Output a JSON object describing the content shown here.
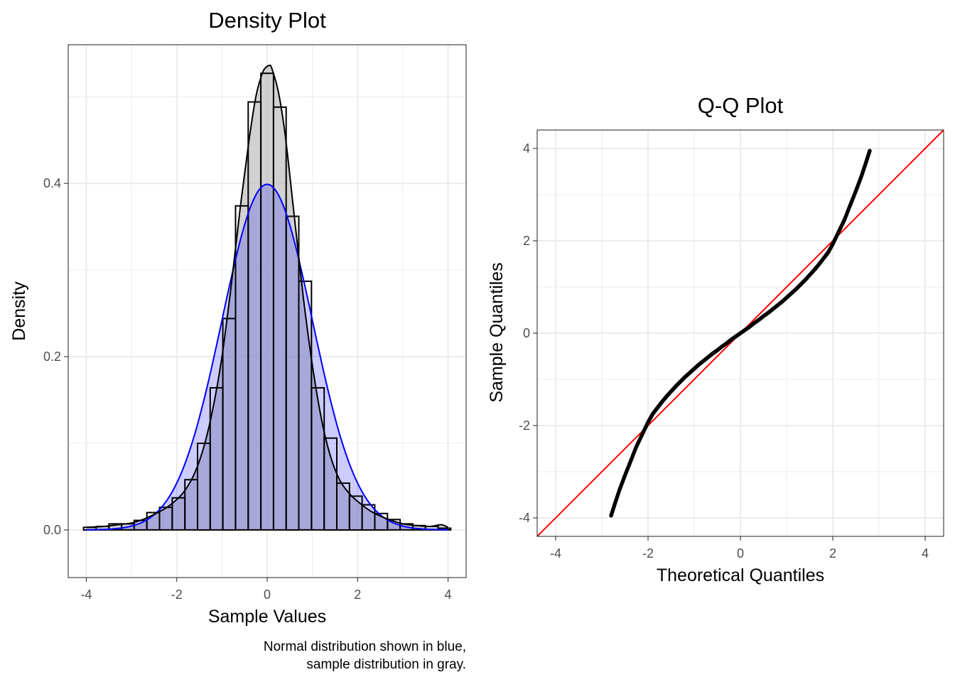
{
  "colors": {
    "normal_line": "#0000ff",
    "normal_fill": "#0000ff",
    "sample_fill": "#bebebe",
    "reference_line": "#ff0000",
    "points": "#000000"
  },
  "chart_data": [
    {
      "type": "histogram",
      "title": "Density Plot",
      "xlabel": "Sample Values",
      "ylabel": "Density",
      "caption": [
        "Normal distribution shown in blue,",
        "sample distribution in gray."
      ],
      "xlim": [
        -4.4,
        4.4
      ],
      "ylim": [
        -0.055,
        0.56
      ],
      "xticks": [
        -4,
        -2,
        0,
        2,
        4
      ],
      "xtick_labels": [
        "-4",
        "-2",
        "0",
        "2",
        "4"
      ],
      "yticks": [
        0,
        0.2,
        0.4
      ],
      "ytick_labels": [
        "0.0",
        "0.2",
        "0.4"
      ],
      "grid": true,
      "bin_width": 0.28,
      "bins": [
        {
          "x0": -4.06,
          "x1": -3.78,
          "density": 0.003
        },
        {
          "x0": -3.78,
          "x1": -3.5,
          "density": 0.004
        },
        {
          "x0": -3.5,
          "x1": -3.22,
          "density": 0.007
        },
        {
          "x0": -3.22,
          "x1": -2.94,
          "density": 0.007
        },
        {
          "x0": -2.94,
          "x1": -2.66,
          "density": 0.011
        },
        {
          "x0": -2.66,
          "x1": -2.38,
          "density": 0.02
        },
        {
          "x0": -2.38,
          "x1": -2.1,
          "density": 0.026
        },
        {
          "x0": -2.1,
          "x1": -1.82,
          "density": 0.037
        },
        {
          "x0": -1.82,
          "x1": -1.54,
          "density": 0.058
        },
        {
          "x0": -1.54,
          "x1": -1.26,
          "density": 0.1
        },
        {
          "x0": -1.26,
          "x1": -0.98,
          "density": 0.164
        },
        {
          "x0": -0.98,
          "x1": -0.7,
          "density": 0.244
        },
        {
          "x0": -0.7,
          "x1": -0.42,
          "density": 0.374
        },
        {
          "x0": -0.42,
          "x1": -0.14,
          "density": 0.494
        },
        {
          "x0": -0.14,
          "x1": 0.14,
          "density": 0.527
        },
        {
          "x0": 0.14,
          "x1": 0.42,
          "density": 0.488
        },
        {
          "x0": 0.42,
          "x1": 0.7,
          "density": 0.362
        },
        {
          "x0": 0.7,
          "x1": 0.98,
          "density": 0.287
        },
        {
          "x0": 0.98,
          "x1": 1.26,
          "density": 0.164
        },
        {
          "x0": 1.26,
          "x1": 1.54,
          "density": 0.106
        },
        {
          "x0": 1.54,
          "x1": 1.82,
          "density": 0.054
        },
        {
          "x0": 1.82,
          "x1": 2.1,
          "density": 0.039
        },
        {
          "x0": 2.1,
          "x1": 2.38,
          "density": 0.029
        },
        {
          "x0": 2.38,
          "x1": 2.66,
          "density": 0.019
        },
        {
          "x0": 2.66,
          "x1": 2.94,
          "density": 0.012
        },
        {
          "x0": 2.94,
          "x1": 3.22,
          "density": 0.007
        },
        {
          "x0": 3.22,
          "x1": 3.5,
          "density": 0.005
        },
        {
          "x0": 3.5,
          "x1": 3.78,
          "density": 0.004
        },
        {
          "x0": 3.78,
          "x1": 4.06,
          "density": 0.002
        }
      ],
      "series": [
        {
          "kind": "normal-density",
          "mean": 0,
          "sd": 1,
          "color": "blue"
        },
        {
          "kind": "sample-density",
          "color": "gray",
          "x": [
            -4.0,
            -3.6,
            -3.3,
            -3.0,
            -2.75,
            -2.5,
            -2.25,
            -2.0,
            -1.8,
            -1.6,
            -1.4,
            -1.2,
            -1.0,
            -0.8,
            -0.6,
            -0.4,
            -0.25,
            -0.1,
            0.0,
            0.05,
            0.1,
            0.25,
            0.4,
            0.6,
            0.8,
            1.0,
            1.2,
            1.4,
            1.6,
            1.8,
            2.0,
            2.25,
            2.5,
            2.75,
            3.0,
            3.3,
            3.6,
            3.85,
            4.0
          ],
          "y": [
            0.003,
            0.004,
            0.006,
            0.008,
            0.012,
            0.018,
            0.025,
            0.035,
            0.047,
            0.066,
            0.096,
            0.14,
            0.2,
            0.28,
            0.37,
            0.45,
            0.5,
            0.528,
            0.535,
            0.536,
            0.533,
            0.505,
            0.455,
            0.362,
            0.268,
            0.19,
            0.128,
            0.085,
            0.058,
            0.043,
            0.033,
            0.023,
            0.016,
            0.011,
            0.007,
            0.005,
            0.004,
            0.006,
            0.003
          ]
        }
      ]
    },
    {
      "type": "scatter",
      "title": "Q-Q Plot",
      "xlabel": "Theoretical Quantiles",
      "ylabel": "Sample Quantiles",
      "xlim": [
        -4.4,
        4.4
      ],
      "ylim": [
        -4.4,
        4.4
      ],
      "xticks": [
        -4,
        -2,
        0,
        2,
        4
      ],
      "xtick_labels": [
        "-4",
        "-2",
        "0",
        "2",
        "4"
      ],
      "yticks": [
        -4,
        -2,
        0,
        2,
        4
      ],
      "ytick_labels": [
        "-4",
        "-2",
        "0",
        "2",
        "4"
      ],
      "grid": true,
      "reference_line": {
        "slope": 1,
        "intercept": 0,
        "color": "red"
      },
      "points": {
        "x": [
          -2.8,
          -2.72,
          -2.62,
          -2.5,
          -2.38,
          -2.25,
          -2.12,
          -2.0,
          -1.9,
          -1.8,
          -1.7,
          -1.6,
          -1.5,
          -1.4,
          -1.3,
          -1.2,
          -1.1,
          -1.0,
          -0.9,
          -0.8,
          -0.7,
          -0.6,
          -0.5,
          -0.4,
          -0.3,
          -0.2,
          -0.1,
          0.0,
          0.1,
          0.2,
          0.3,
          0.4,
          0.5,
          0.6,
          0.7,
          0.8,
          0.9,
          1.0,
          1.1,
          1.2,
          1.3,
          1.4,
          1.5,
          1.6,
          1.7,
          1.8,
          1.9,
          2.0,
          2.12,
          2.25,
          2.38,
          2.5,
          2.62,
          2.72,
          2.8
        ],
        "y": [
          -3.95,
          -3.7,
          -3.4,
          -3.08,
          -2.78,
          -2.45,
          -2.18,
          -1.93,
          -1.75,
          -1.62,
          -1.49,
          -1.37,
          -1.26,
          -1.15,
          -1.05,
          -0.95,
          -0.86,
          -0.77,
          -0.68,
          -0.6,
          -0.52,
          -0.44,
          -0.37,
          -0.29,
          -0.22,
          -0.14,
          -0.07,
          0.0,
          0.07,
          0.14,
          0.22,
          0.29,
          0.37,
          0.44,
          0.52,
          0.6,
          0.68,
          0.77,
          0.86,
          0.95,
          1.05,
          1.15,
          1.26,
          1.37,
          1.49,
          1.62,
          1.75,
          1.93,
          2.18,
          2.45,
          2.78,
          3.08,
          3.4,
          3.7,
          3.95
        ]
      }
    }
  ]
}
